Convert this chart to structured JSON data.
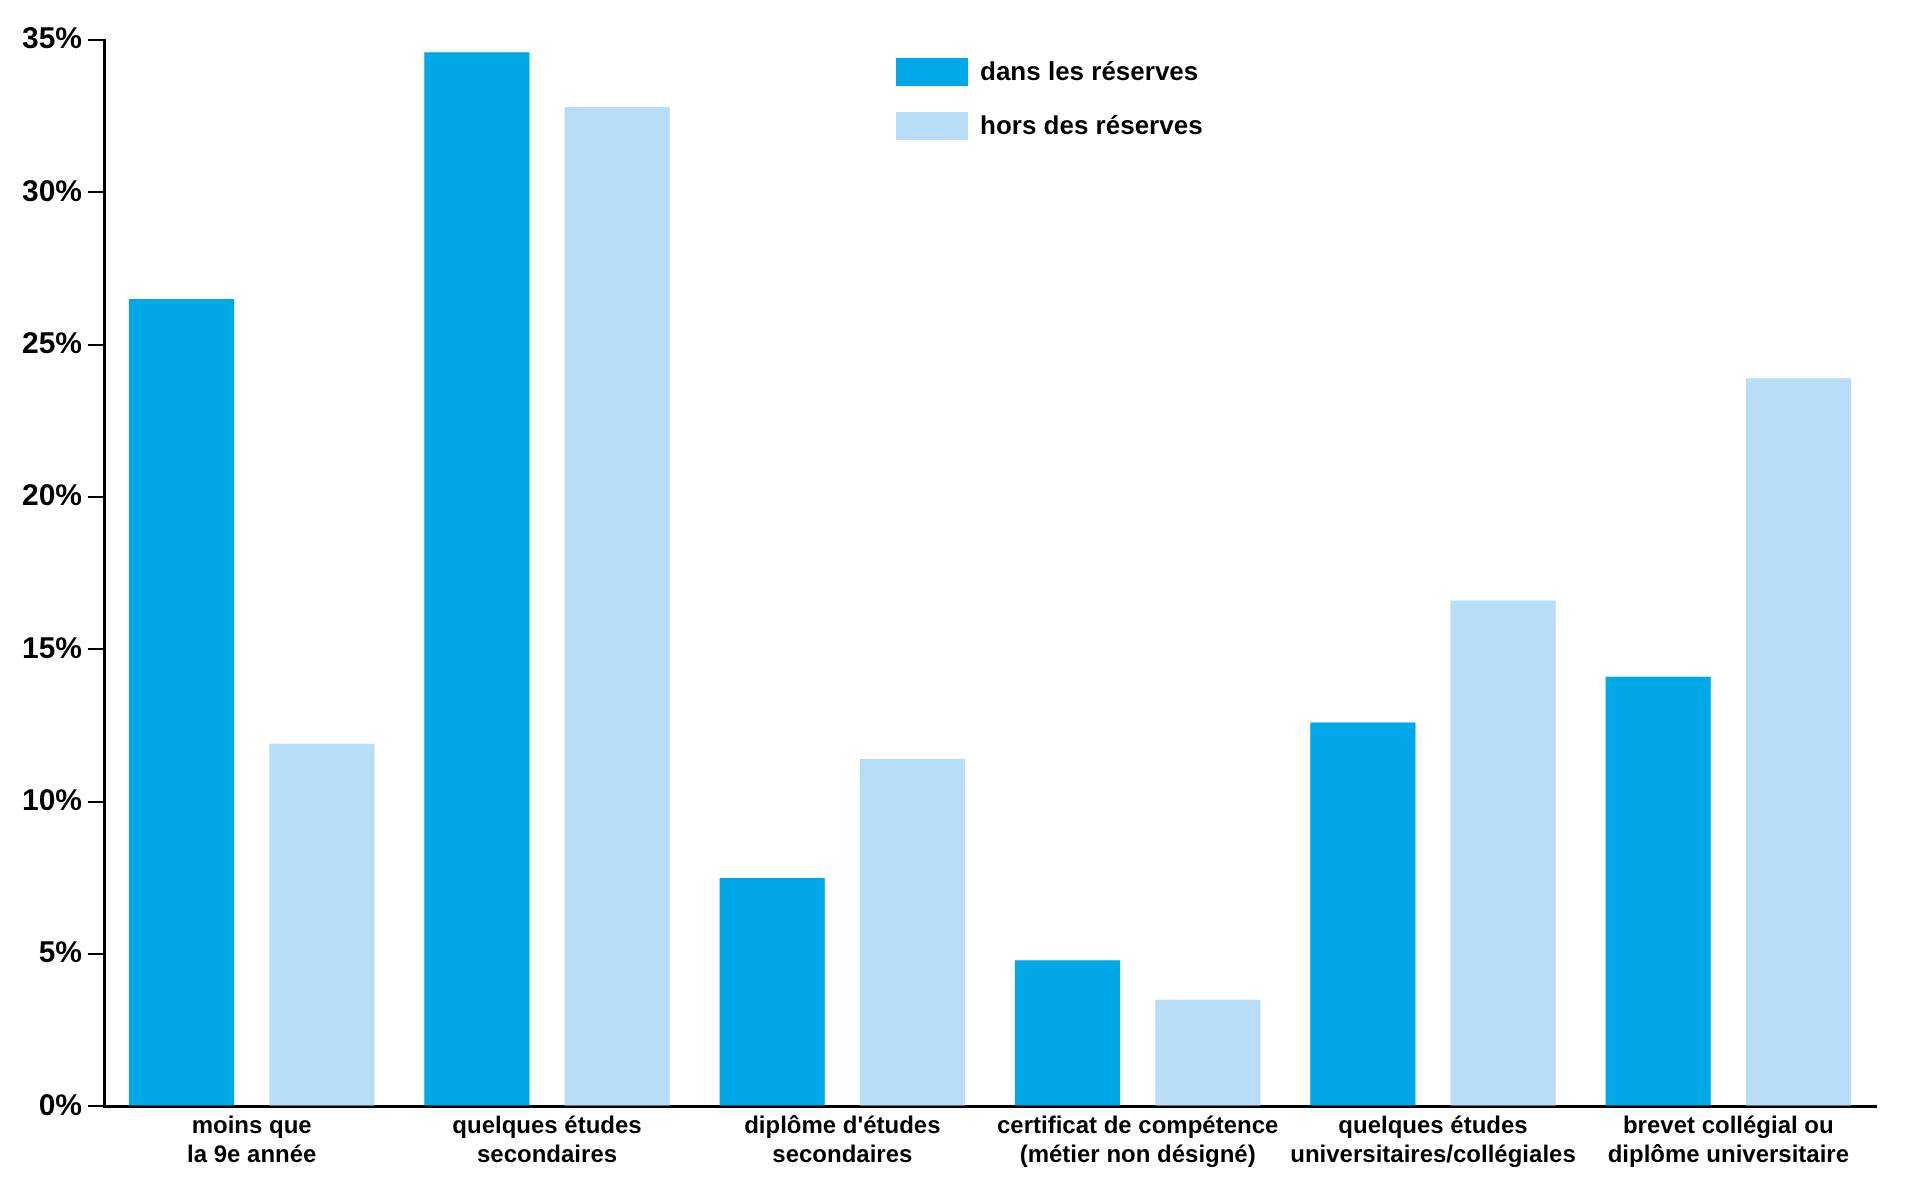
{
  "chart_data": {
    "type": "bar",
    "categories": [
      "moins que la 9e année",
      "quelques études secondaires",
      "diplôme d'études secondaires",
      "certificat de compétence (métier non désigné)",
      "quelques études universitaires/collégiales",
      "brevet collégial ou diplôme universitaire"
    ],
    "series": [
      {
        "name": "dans les réserves",
        "color": "#00a8e8",
        "values": [
          26.5,
          34.6,
          7.5,
          4.8,
          12.6,
          14.1
        ]
      },
      {
        "name": "hors des réserves",
        "color": "#b8def7",
        "values": [
          11.9,
          32.8,
          11.4,
          3.5,
          16.6,
          23.9
        ]
      }
    ],
    "ylim": [
      0,
      35
    ],
    "yticks": [
      {
        "value": 0,
        "label": "0%"
      },
      {
        "value": 5,
        "label": "5%"
      },
      {
        "value": 10,
        "label": "10%"
      },
      {
        "value": 15,
        "label": "15%"
      },
      {
        "value": 20,
        "label": "20%"
      },
      {
        "value": 25,
        "label": "25%"
      },
      {
        "value": 30,
        "label": "30%"
      },
      {
        "value": 35,
        "label": "35%"
      }
    ],
    "grid": false,
    "legend": "top"
  }
}
